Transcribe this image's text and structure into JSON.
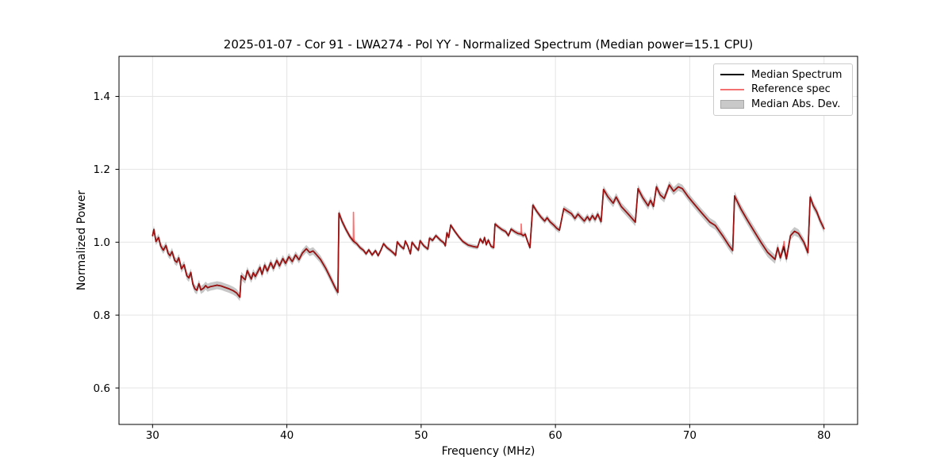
{
  "figure": {
    "title": "2025-01-07 - Cor 91 - LWA274 - Pol YY - Normalized Spectrum (Median power=15.1 CPU)",
    "xlabel": "Frequency (MHz)",
    "ylabel": "Normalized Power"
  },
  "chart_data": {
    "type": "line",
    "title": "2025-01-07 - Cor 91 - LWA274 - Pol YY - Normalized Spectrum (Median power=15.1 CPU)",
    "xlabel": "Frequency (MHz)",
    "ylabel": "Normalized Power",
    "xlim": [
      27.5,
      82.5
    ],
    "ylim": [
      0.5,
      1.51
    ],
    "xticks": [
      30,
      40,
      50,
      60,
      70,
      80
    ],
    "yticks": [
      0.6,
      0.8,
      1.0,
      1.2,
      1.4
    ],
    "grid": true,
    "grid_color": "#e4e4e4",
    "legend_position": "upper right",
    "series": [
      {
        "name": "Median Spectrum",
        "color": "#000000",
        "legend_color": "#000000",
        "line_width": 1.7,
        "points": [
          [
            30.0,
            1.018
          ],
          [
            30.1,
            1.035
          ],
          [
            30.25,
            1.002
          ],
          [
            30.45,
            1.013
          ],
          [
            30.6,
            0.99
          ],
          [
            30.8,
            0.978
          ],
          [
            31.0,
            0.991
          ],
          [
            31.15,
            0.97
          ],
          [
            31.3,
            0.963
          ],
          [
            31.45,
            0.974
          ],
          [
            31.65,
            0.95
          ],
          [
            31.8,
            0.945
          ],
          [
            31.95,
            0.957
          ],
          [
            32.15,
            0.927
          ],
          [
            32.35,
            0.938
          ],
          [
            32.55,
            0.908
          ],
          [
            32.7,
            0.902
          ],
          [
            32.85,
            0.917
          ],
          [
            33.0,
            0.885
          ],
          [
            33.15,
            0.872
          ],
          [
            33.3,
            0.868
          ],
          [
            33.45,
            0.886
          ],
          [
            33.6,
            0.869
          ],
          [
            33.8,
            0.874
          ],
          [
            33.95,
            0.881
          ],
          [
            34.1,
            0.875
          ],
          [
            34.3,
            0.878
          ],
          [
            34.55,
            0.88
          ],
          [
            34.8,
            0.882
          ],
          [
            35.1,
            0.88
          ],
          [
            35.4,
            0.876
          ],
          [
            35.7,
            0.872
          ],
          [
            36.0,
            0.867
          ],
          [
            36.25,
            0.861
          ],
          [
            36.5,
            0.849
          ],
          [
            36.6,
            0.908
          ],
          [
            36.75,
            0.902
          ],
          [
            36.9,
            0.897
          ],
          [
            37.05,
            0.922
          ],
          [
            37.2,
            0.91
          ],
          [
            37.35,
            0.899
          ],
          [
            37.5,
            0.916
          ],
          [
            37.65,
            0.906
          ],
          [
            37.85,
            0.92
          ],
          [
            38.0,
            0.931
          ],
          [
            38.15,
            0.912
          ],
          [
            38.35,
            0.937
          ],
          [
            38.55,
            0.921
          ],
          [
            38.8,
            0.944
          ],
          [
            39.0,
            0.928
          ],
          [
            39.25,
            0.95
          ],
          [
            39.45,
            0.935
          ],
          [
            39.7,
            0.955
          ],
          [
            39.9,
            0.942
          ],
          [
            40.15,
            0.96
          ],
          [
            40.4,
            0.947
          ],
          [
            40.65,
            0.965
          ],
          [
            40.9,
            0.952
          ],
          [
            41.15,
            0.97
          ],
          [
            41.45,
            0.982
          ],
          [
            41.7,
            0.972
          ],
          [
            41.95,
            0.976
          ],
          [
            42.15,
            0.968
          ],
          [
            42.5,
            0.953
          ],
          [
            42.9,
            0.928
          ],
          [
            43.3,
            0.898
          ],
          [
            43.6,
            0.875
          ],
          [
            43.8,
            0.862
          ],
          [
            43.88,
            1.08
          ],
          [
            44.1,
            1.058
          ],
          [
            44.4,
            1.035
          ],
          [
            44.7,
            1.015
          ],
          [
            44.95,
            1.003
          ],
          [
            45.2,
            0.996
          ],
          [
            45.45,
            0.985
          ],
          [
            45.7,
            0.978
          ],
          [
            45.9,
            0.968
          ],
          [
            46.1,
            0.979
          ],
          [
            46.35,
            0.965
          ],
          [
            46.6,
            0.977
          ],
          [
            46.8,
            0.963
          ],
          [
            47.0,
            0.978
          ],
          [
            47.2,
            0.996
          ],
          [
            47.45,
            0.985
          ],
          [
            47.7,
            0.978
          ],
          [
            47.95,
            0.97
          ],
          [
            48.1,
            0.964
          ],
          [
            48.22,
            1.001
          ],
          [
            48.45,
            0.99
          ],
          [
            48.7,
            0.982
          ],
          [
            48.82,
            1.003
          ],
          [
            49.0,
            0.99
          ],
          [
            49.2,
            0.968
          ],
          [
            49.32,
            1.0
          ],
          [
            49.6,
            0.986
          ],
          [
            49.8,
            0.978
          ],
          [
            49.92,
            1.004
          ],
          [
            50.2,
            0.99
          ],
          [
            50.5,
            0.981
          ],
          [
            50.62,
            1.011
          ],
          [
            50.85,
            1.005
          ],
          [
            51.1,
            1.018
          ],
          [
            51.45,
            1.005
          ],
          [
            51.7,
            0.998
          ],
          [
            51.8,
            0.99
          ],
          [
            51.92,
            1.026
          ],
          [
            52.05,
            1.013
          ],
          [
            52.2,
            1.047
          ],
          [
            52.5,
            1.03
          ],
          [
            52.8,
            1.015
          ],
          [
            53.1,
            1.002
          ],
          [
            53.5,
            0.992
          ],
          [
            53.9,
            0.988
          ],
          [
            54.2,
            0.986
          ],
          [
            54.4,
            1.009
          ],
          [
            54.6,
            0.998
          ],
          [
            54.72,
            1.013
          ],
          [
            54.85,
            0.993
          ],
          [
            55.0,
            1.006
          ],
          [
            55.2,
            0.989
          ],
          [
            55.4,
            0.985
          ],
          [
            55.5,
            1.05
          ],
          [
            55.75,
            1.042
          ],
          [
            56.0,
            1.035
          ],
          [
            56.3,
            1.029
          ],
          [
            56.5,
            1.018
          ],
          [
            56.7,
            1.036
          ],
          [
            57.0,
            1.028
          ],
          [
            57.2,
            1.024
          ],
          [
            57.45,
            1.022
          ],
          [
            57.6,
            1.018
          ],
          [
            57.75,
            1.022
          ],
          [
            57.9,
            1.005
          ],
          [
            58.1,
            0.985
          ],
          [
            58.32,
            1.102
          ],
          [
            58.6,
            1.085
          ],
          [
            58.9,
            1.07
          ],
          [
            59.2,
            1.058
          ],
          [
            59.38,
            1.067
          ],
          [
            59.6,
            1.056
          ],
          [
            59.9,
            1.046
          ],
          [
            60.1,
            1.038
          ],
          [
            60.3,
            1.033
          ],
          [
            60.62,
            1.092
          ],
          [
            60.9,
            1.085
          ],
          [
            61.2,
            1.078
          ],
          [
            61.45,
            1.065
          ],
          [
            61.68,
            1.077
          ],
          [
            61.9,
            1.068
          ],
          [
            62.15,
            1.058
          ],
          [
            62.38,
            1.07
          ],
          [
            62.55,
            1.06
          ],
          [
            62.75,
            1.073
          ],
          [
            62.95,
            1.062
          ],
          [
            63.15,
            1.077
          ],
          [
            63.4,
            1.056
          ],
          [
            63.58,
            1.145
          ],
          [
            63.9,
            1.125
          ],
          [
            64.3,
            1.107
          ],
          [
            64.52,
            1.124
          ],
          [
            64.9,
            1.098
          ],
          [
            65.4,
            1.078
          ],
          [
            65.95,
            1.055
          ],
          [
            66.15,
            1.147
          ],
          [
            66.5,
            1.122
          ],
          [
            66.9,
            1.1
          ],
          [
            67.08,
            1.115
          ],
          [
            67.3,
            1.098
          ],
          [
            67.52,
            1.152
          ],
          [
            67.8,
            1.13
          ],
          [
            68.1,
            1.12
          ],
          [
            68.48,
            1.157
          ],
          [
            68.8,
            1.14
          ],
          [
            69.15,
            1.152
          ],
          [
            69.45,
            1.147
          ],
          [
            69.9,
            1.124
          ],
          [
            70.3,
            1.106
          ],
          [
            70.9,
            1.08
          ],
          [
            71.5,
            1.055
          ],
          [
            71.9,
            1.046
          ],
          [
            72.5,
            1.015
          ],
          [
            72.9,
            0.992
          ],
          [
            73.2,
            0.977
          ],
          [
            73.34,
            1.127
          ],
          [
            73.8,
            1.092
          ],
          [
            74.3,
            1.06
          ],
          [
            74.8,
            1.03
          ],
          [
            75.3,
            1.0
          ],
          [
            75.8,
            0.972
          ],
          [
            76.35,
            0.953
          ],
          [
            76.55,
            0.985
          ],
          [
            76.75,
            0.957
          ],
          [
            77.0,
            0.988
          ],
          [
            77.2,
            0.954
          ],
          [
            77.5,
            1.018
          ],
          [
            77.8,
            1.03
          ],
          [
            78.1,
            1.024
          ],
          [
            78.5,
            1.0
          ],
          [
            78.8,
            0.971
          ],
          [
            78.97,
            1.124
          ],
          [
            79.2,
            1.1
          ],
          [
            79.45,
            1.084
          ],
          [
            79.7,
            1.06
          ],
          [
            80.0,
            1.037
          ]
        ]
      },
      {
        "name": "Reference spec",
        "color": "#ff1a1a",
        "opacity": 0.62,
        "legend_color": "#f47171",
        "line_width": 1.7,
        "based_on": "Median Spectrum",
        "extra_points": [
          [
            44.92,
            1.006
          ],
          [
            44.96,
            1.082
          ],
          [
            45.0,
            1.001
          ],
          [
            57.41,
            1.023
          ],
          [
            57.45,
            1.05
          ],
          [
            57.49,
            1.021
          ],
          [
            76.98,
            0.992
          ],
          [
            77.02,
            1.002
          ],
          [
            77.06,
            0.99
          ]
        ]
      },
      {
        "name": "Median Abs. Dev.",
        "type": "band",
        "around": "Median Spectrum",
        "color": "#909090",
        "opacity": 0.5,
        "legend_color": "#c9c9c9",
        "half_width_control_points": [
          [
            30,
            0.01
          ],
          [
            33,
            0.011
          ],
          [
            36,
            0.011
          ],
          [
            40,
            0.01
          ],
          [
            43.5,
            0.011
          ],
          [
            44.5,
            0.008
          ],
          [
            46,
            0.006
          ],
          [
            52,
            0.006
          ],
          [
            56,
            0.006
          ],
          [
            58,
            0.007
          ],
          [
            60,
            0.008
          ],
          [
            63,
            0.009
          ],
          [
            64,
            0.011
          ],
          [
            67,
            0.011
          ],
          [
            70,
            0.011
          ],
          [
            73,
            0.012
          ],
          [
            75,
            0.013
          ],
          [
            77,
            0.012
          ],
          [
            79,
            0.011
          ],
          [
            80,
            0.011
          ]
        ]
      }
    ]
  }
}
